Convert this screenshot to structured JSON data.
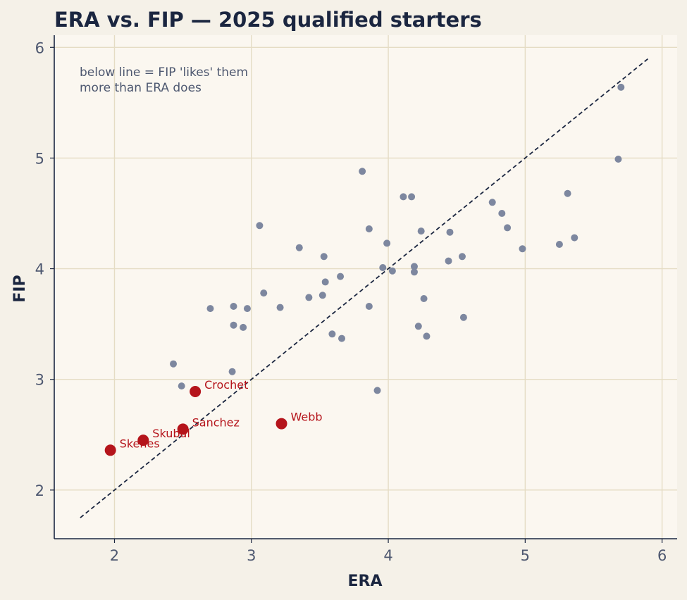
{
  "chart_data": {
    "type": "scatter",
    "title": "ERA vs. FIP — 2025 qualified starters",
    "xlabel": "ERA",
    "ylabel": "FIP",
    "xlim": [
      1.56,
      6.11
    ],
    "ylim": [
      1.56,
      6.11
    ],
    "xticks": [
      2,
      3,
      4,
      5,
      6
    ],
    "yticks": [
      2,
      3,
      4,
      5,
      6
    ],
    "grid": true,
    "reference_line": {
      "style": "dashed",
      "from": [
        1.75,
        1.75
      ],
      "to": [
        5.9,
        5.9
      ]
    },
    "annotation": [
      "below line = FIP 'likes' them",
      "more than ERA does"
    ],
    "colors": {
      "background": "#f5f1e8",
      "plot_background": "#fbf7f0",
      "grid": "#e5dcc4",
      "axis": "#1b2640",
      "points": "#7d879f",
      "highlight": "#b5141b",
      "reference_line": "#1b2640",
      "title": "#1b2640",
      "ticks": "#4e5870"
    },
    "points": [
      {
        "x": 2.43,
        "y": 3.14
      },
      {
        "x": 2.49,
        "y": 2.94
      },
      {
        "x": 2.7,
        "y": 3.64
      },
      {
        "x": 2.86,
        "y": 3.07
      },
      {
        "x": 2.87,
        "y": 3.66
      },
      {
        "x": 2.87,
        "y": 3.49
      },
      {
        "x": 2.94,
        "y": 3.47
      },
      {
        "x": 2.97,
        "y": 3.64
      },
      {
        "x": 3.06,
        "y": 4.39
      },
      {
        "x": 3.09,
        "y": 3.78
      },
      {
        "x": 3.21,
        "y": 3.65
      },
      {
        "x": 3.35,
        "y": 4.19
      },
      {
        "x": 3.42,
        "y": 3.74
      },
      {
        "x": 3.52,
        "y": 3.76
      },
      {
        "x": 3.53,
        "y": 4.11
      },
      {
        "x": 3.54,
        "y": 3.88
      },
      {
        "x": 3.59,
        "y": 3.41
      },
      {
        "x": 3.65,
        "y": 3.93
      },
      {
        "x": 3.66,
        "y": 3.37
      },
      {
        "x": 3.81,
        "y": 4.88
      },
      {
        "x": 3.86,
        "y": 4.36
      },
      {
        "x": 3.86,
        "y": 3.66
      },
      {
        "x": 3.92,
        "y": 2.9
      },
      {
        "x": 3.96,
        "y": 4.01
      },
      {
        "x": 3.99,
        "y": 4.23
      },
      {
        "x": 4.03,
        "y": 3.98
      },
      {
        "x": 4.11,
        "y": 4.65
      },
      {
        "x": 4.17,
        "y": 4.65
      },
      {
        "x": 4.19,
        "y": 4.02
      },
      {
        "x": 4.19,
        "y": 3.97
      },
      {
        "x": 4.22,
        "y": 3.48
      },
      {
        "x": 4.24,
        "y": 4.34
      },
      {
        "x": 4.26,
        "y": 3.73
      },
      {
        "x": 4.28,
        "y": 3.39
      },
      {
        "x": 4.44,
        "y": 4.07
      },
      {
        "x": 4.45,
        "y": 4.33
      },
      {
        "x": 4.54,
        "y": 4.11
      },
      {
        "x": 4.55,
        "y": 3.56
      },
      {
        "x": 4.76,
        "y": 4.6
      },
      {
        "x": 4.83,
        "y": 4.5
      },
      {
        "x": 4.87,
        "y": 4.37
      },
      {
        "x": 4.98,
        "y": 4.18
      },
      {
        "x": 5.25,
        "y": 4.22
      },
      {
        "x": 5.31,
        "y": 4.68
      },
      {
        "x": 5.36,
        "y": 4.28
      },
      {
        "x": 5.68,
        "y": 4.99
      },
      {
        "x": 5.7,
        "y": 5.64
      }
    ],
    "highlighted": [
      {
        "name": "Crochet",
        "x": 2.59,
        "y": 2.89
      },
      {
        "name": "Webb",
        "x": 3.22,
        "y": 2.6
      },
      {
        "name": "Sanchez",
        "x": 2.5,
        "y": 2.55
      },
      {
        "name": "Skubal",
        "x": 2.21,
        "y": 2.45
      },
      {
        "name": "Skenes",
        "x": 1.97,
        "y": 2.36
      }
    ]
  }
}
